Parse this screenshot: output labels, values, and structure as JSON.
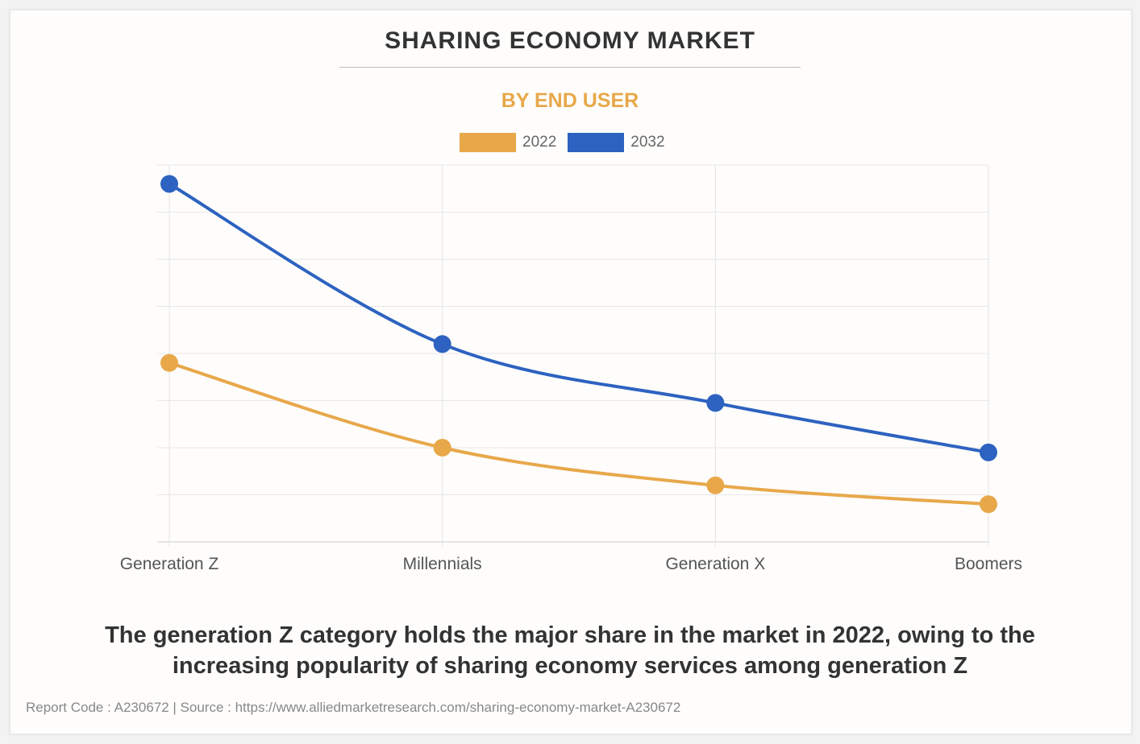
{
  "title": "SHARING ECONOMY MARKET",
  "subtitle": "BY END USER",
  "caption": "The generation Z category holds the major share in the market in 2022, owing to the increasing popularity of sharing economy services among generation Z",
  "footer": "Report Code : A230672  |  Source : https://www.alliedmarketresearch.com/sharing-economy-market-A230672",
  "chart_data": {
    "type": "line",
    "categories": [
      "Generation Z",
      "Millennials",
      "Generation X",
      "Boomers"
    ],
    "series": [
      {
        "name": "2022",
        "color": "#e8a84a",
        "values": [
          3.8,
          2.0,
          1.2,
          0.8
        ]
      },
      {
        "name": "2032",
        "color": "#2d62c0",
        "values": [
          7.6,
          4.2,
          2.95,
          1.9
        ]
      }
    ],
    "ylim": [
      0,
      8
    ],
    "y_tick_labels_shown": false,
    "grid": true,
    "smooth": true,
    "legend": "top-center"
  }
}
